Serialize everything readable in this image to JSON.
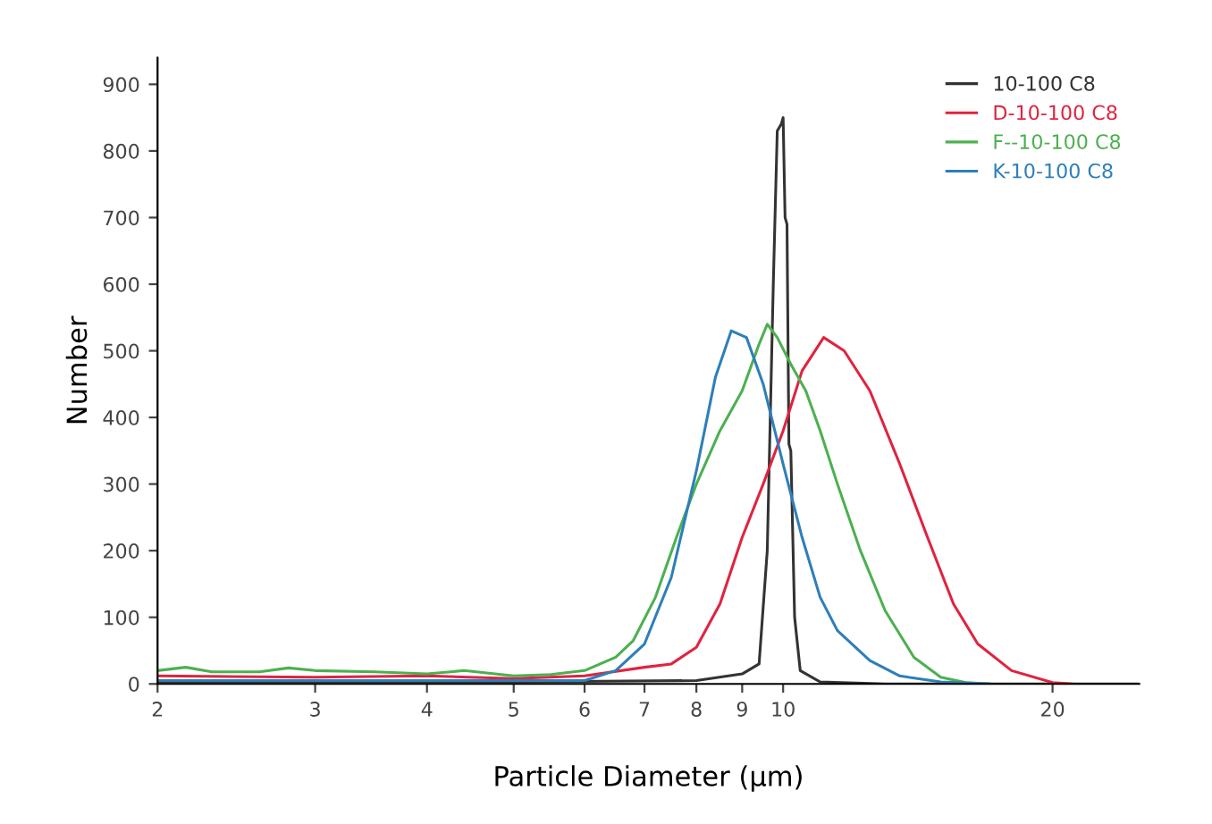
{
  "chart_data": {
    "type": "line",
    "xlabel": "Particle Diameter (μm)",
    "ylabel": "Number",
    "log": "x",
    "xlim": [
      2,
      25
    ],
    "ylim": [
      0,
      940
    ],
    "xticks": [
      2,
      3,
      4,
      5,
      6,
      7,
      8,
      9,
      10,
      20
    ],
    "yticks": [
      0,
      100,
      200,
      300,
      400,
      500,
      600,
      700,
      800,
      900
    ],
    "grid": false,
    "legend": "top right",
    "marker": "none",
    "line_style": "solid",
    "series": [
      {
        "name": "10-100 C8",
        "color": "#333333",
        "x": [
          2,
          5,
          8,
          9,
          9.4,
          9.6,
          9.75,
          9.85,
          9.95,
          10.0,
          10.05,
          10.1,
          10.15,
          10.2,
          10.3,
          10.45,
          11,
          13,
          25
        ],
        "values": [
          3,
          3,
          5,
          15,
          30,
          200,
          600,
          830,
          840,
          850,
          700,
          690,
          360,
          350,
          100,
          20,
          3,
          0,
          0
        ]
      },
      {
        "name": "D-10-100 C8",
        "color": "#e0233f",
        "x": [
          2,
          3,
          4,
          5,
          6,
          7,
          7.5,
          8,
          8.5,
          9,
          9.5,
          10,
          10.5,
          11.1,
          11.7,
          12.5,
          13.5,
          14.5,
          15.5,
          16.5,
          18,
          20,
          21
        ],
        "values": [
          12,
          10,
          12,
          8,
          12,
          25,
          30,
          55,
          120,
          220,
          300,
          380,
          470,
          520,
          500,
          440,
          330,
          220,
          120,
          60,
          20,
          2,
          0
        ]
      },
      {
        "name": "F--10-100 C8",
        "color": "#4cb050",
        "x": [
          2,
          2.15,
          2.3,
          2.6,
          2.8,
          3,
          3.5,
          4,
          4.4,
          5,
          5.5,
          6,
          6.5,
          6.8,
          7.2,
          7.6,
          8,
          8.5,
          9,
          9.4,
          9.6,
          9.85,
          10.2,
          10.6,
          11,
          11.5,
          12.2,
          13,
          14,
          15,
          16,
          17
        ],
        "values": [
          20,
          25,
          18,
          18,
          24,
          20,
          18,
          15,
          20,
          12,
          14,
          20,
          40,
          65,
          130,
          220,
          300,
          380,
          440,
          510,
          540,
          520,
          480,
          440,
          380,
          300,
          200,
          110,
          40,
          10,
          2,
          0
        ]
      },
      {
        "name": "K-10-100 C8",
        "color": "#2e7fb8",
        "x": [
          2,
          4,
          6,
          6.5,
          7,
          7.5,
          8,
          8.4,
          8.75,
          9.1,
          9.5,
          10,
          10.5,
          11,
          11.5,
          12.5,
          13.5,
          15,
          17
        ],
        "values": [
          5,
          5,
          5,
          20,
          60,
          160,
          320,
          460,
          530,
          520,
          450,
          330,
          220,
          130,
          80,
          35,
          12,
          3,
          0
        ]
      }
    ]
  }
}
